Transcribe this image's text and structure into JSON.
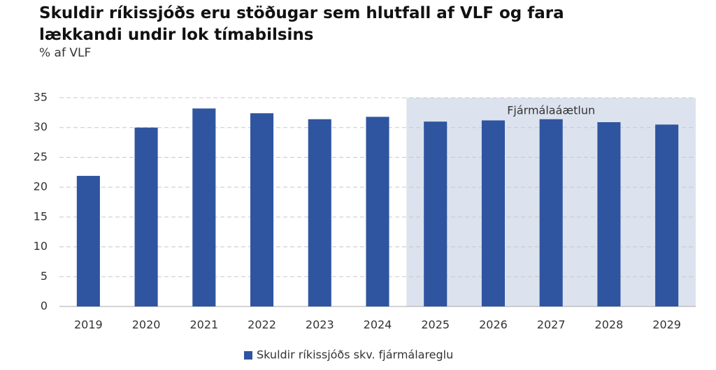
{
  "chart_data": {
    "type": "bar",
    "title": "Skuldir ríkissjóðs eru stöðugar sem hlutfall af VLF og fara lækkandi undir lok tímabilsins",
    "subtitle": "% af VLF",
    "categories": [
      "2019",
      "2020",
      "2021",
      "2022",
      "2023",
      "2024",
      "2025",
      "2026",
      "2027",
      "2028",
      "2029"
    ],
    "series": [
      {
        "name": "Skuldir ríkissjóðs skv. fjármálareglu",
        "color": "#2f55a0",
        "values": [
          21.9,
          30.0,
          33.2,
          32.4,
          31.4,
          31.8,
          31.0,
          31.2,
          31.4,
          30.9,
          30.5
        ]
      }
    ],
    "ylim": [
      0,
      35
    ],
    "yticks": [
      0,
      5,
      10,
      15,
      20,
      25,
      30,
      35
    ],
    "grid": true,
    "shaded_region": {
      "label": "Fjármálaáætlun",
      "from": "2025",
      "to": "2029",
      "color": "#dce3ee"
    }
  }
}
